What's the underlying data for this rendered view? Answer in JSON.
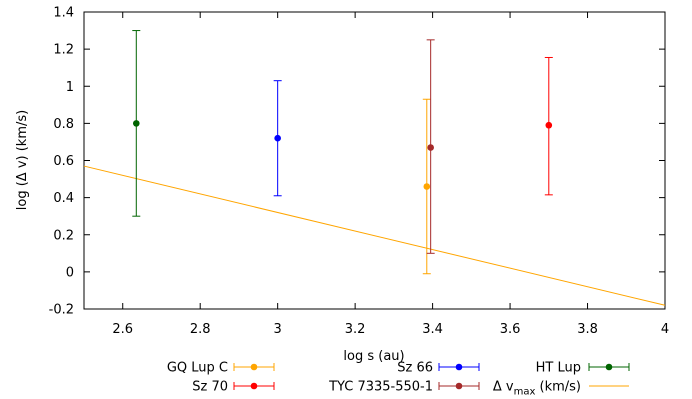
{
  "chart_data": {
    "type": "scatter",
    "xlabel": "log s (au)",
    "ylabel": "log (Δ v) (km/s)",
    "xlim": [
      2.5,
      4.0
    ],
    "ylim": [
      -0.2,
      1.4
    ],
    "xticks": [
      "2.6",
      "2.8",
      "3",
      "3.2",
      "3.4",
      "3.6",
      "3.8",
      "4"
    ],
    "yticks": [
      "-0.2",
      "0",
      "0.2",
      "0.4",
      "0.6",
      "0.8",
      "1",
      "1.2",
      "1.4"
    ],
    "grid": false,
    "legend_position": "bottom",
    "series": [
      {
        "name": "GQ Lup C",
        "color": "#ffa500",
        "x": 3.385,
        "y": 0.46,
        "y_low": -0.01,
        "y_high": 0.93
      },
      {
        "name": "Sz 70",
        "color": "#ff0000",
        "x": 3.7,
        "y": 0.79,
        "y_low": 0.415,
        "y_high": 1.155
      },
      {
        "name": "Sz 66",
        "color": "#0000ff",
        "x": 3.0,
        "y": 0.72,
        "y_low": 0.41,
        "y_high": 1.03
      },
      {
        "name": "TYC 7335-550-1",
        "color": "#a52a2a",
        "x": 3.395,
        "y": 0.67,
        "y_low": 0.1,
        "y_high": 1.25
      },
      {
        "name": "HT Lup",
        "color": "#006400",
        "x": 2.635,
        "y": 0.8,
        "y_low": 0.3,
        "y_high": 1.3
      }
    ],
    "line": {
      "name": "Δ v",
      "name_subscript": "max",
      "name_suffix": " (km/s)",
      "color": "#ffa500",
      "x": [
        2.5,
        4.0
      ],
      "y": [
        0.57,
        -0.18
      ]
    }
  }
}
